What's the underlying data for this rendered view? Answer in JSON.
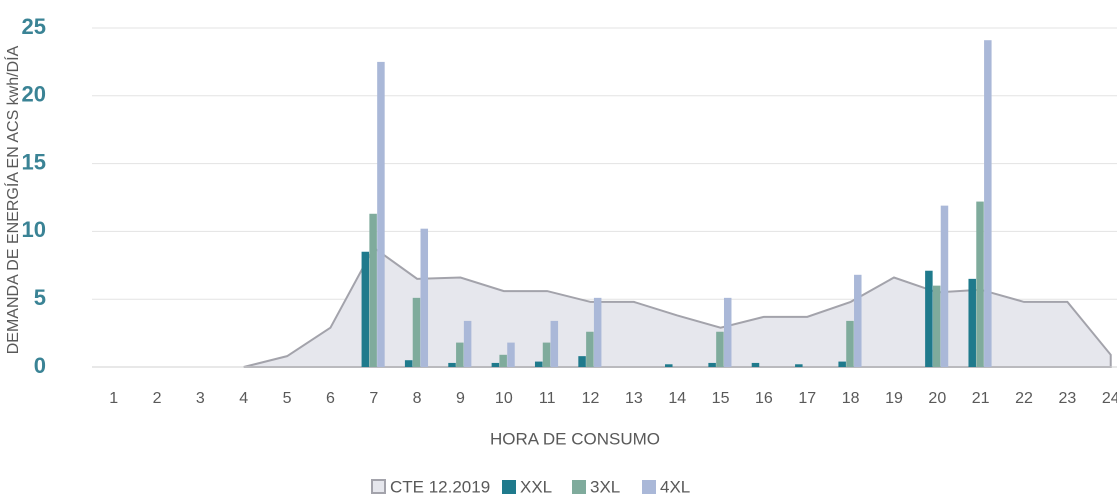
{
  "chart_data": {
    "type": "bar",
    "x_label": "HORA DE CONSUMO",
    "y_label": "DEMANDA DE ENERGÍA EN ACS kwh/DÍA",
    "categories": [
      "1",
      "2",
      "3",
      "4",
      "5",
      "6",
      "7",
      "8",
      "9",
      "10",
      "11",
      "12",
      "13",
      "14",
      "15",
      "16",
      "17",
      "18",
      "19",
      "20",
      "21",
      "22",
      "23",
      "24"
    ],
    "ylim": [
      0,
      25
    ],
    "yticks": [
      0,
      5,
      10,
      15,
      20,
      25
    ],
    "grid": true,
    "legend": "bottom",
    "series": [
      {
        "name": "CTE 12.2019",
        "type": "area",
        "color": "#e6e7ed",
        "line_color": "#a3a3ab",
        "values": [
          null,
          null,
          null,
          0,
          0.8,
          2.9,
          8.8,
          6.5,
          6.6,
          5.6,
          5.6,
          4.8,
          4.8,
          3.8,
          2.9,
          3.7,
          3.7,
          4.8,
          6.6,
          5.5,
          5.7,
          4.8,
          4.8,
          0.9
        ]
      },
      {
        "name": "XXL",
        "color": "#1f7a8c",
        "values": [
          null,
          null,
          null,
          null,
          null,
          null,
          8.5,
          0.5,
          0.3,
          0.3,
          0.4,
          0.8,
          null,
          0.2,
          0.3,
          0.3,
          0.2,
          0.4,
          null,
          7.1,
          6.5,
          null,
          null,
          null
        ]
      },
      {
        "name": "3XL",
        "color": "#7fab9c",
        "values": [
          null,
          null,
          null,
          null,
          null,
          null,
          11.3,
          5.1,
          1.8,
          0.9,
          1.8,
          2.6,
          null,
          null,
          2.6,
          null,
          null,
          3.4,
          null,
          6.0,
          12.2,
          null,
          null,
          null
        ]
      },
      {
        "name": "4XL",
        "color": "#aab8d8",
        "values": [
          null,
          null,
          null,
          null,
          null,
          null,
          22.5,
          10.2,
          3.4,
          1.8,
          3.4,
          5.1,
          null,
          null,
          5.1,
          null,
          null,
          6.8,
          null,
          11.9,
          24.1,
          null,
          null,
          null
        ]
      }
    ]
  }
}
